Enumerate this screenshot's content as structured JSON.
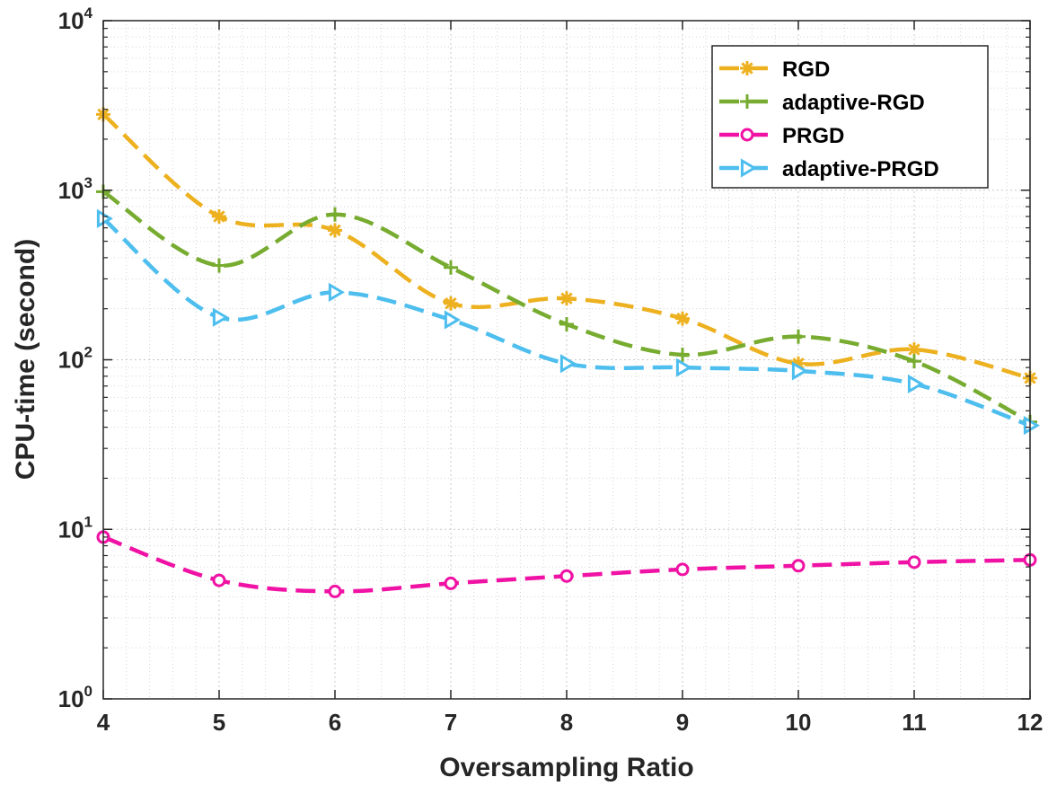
{
  "chart_data": {
    "type": "line",
    "title": "",
    "xlabel": "Oversampling Ratio",
    "ylabel": "CPU-time (second)",
    "x": [
      4,
      5,
      6,
      7,
      8,
      9,
      10,
      11,
      12
    ],
    "xlim": [
      4,
      12
    ],
    "ylim": [
      1,
      10000
    ],
    "yscale": "log",
    "grid": true,
    "minor_grid": true,
    "legend_position": "top-right",
    "x_ticks": [
      "4",
      "5",
      "6",
      "7",
      "8",
      "9",
      "10",
      "11",
      "12"
    ],
    "y_ticks": [
      {
        "value": 1,
        "base": "10",
        "exp": "0"
      },
      {
        "value": 10,
        "base": "10",
        "exp": "1"
      },
      {
        "value": 100,
        "base": "10",
        "exp": "2"
      },
      {
        "value": 1000,
        "base": "10",
        "exp": "3"
      },
      {
        "value": 10000,
        "base": "10",
        "exp": "4"
      }
    ],
    "series": [
      {
        "name": "RGD",
        "color": "#EDB120",
        "marker": "asterisk",
        "values": [
          2800,
          700,
          580,
          215,
          230,
          175,
          95,
          115,
          78
        ]
      },
      {
        "name": "adaptive-RGD",
        "color": "#77AC30",
        "marker": "plus",
        "values": [
          980,
          360,
          720,
          350,
          162,
          107,
          137,
          98,
          43
        ]
      },
      {
        "name": "PRGD",
        "color": "#F012A4",
        "marker": "circle",
        "values": [
          9.0,
          5.0,
          4.3,
          4.8,
          5.3,
          5.8,
          6.1,
          6.4,
          6.6
        ]
      },
      {
        "name": "adaptive-PRGD",
        "color": "#4DBEEE",
        "marker": "triangle-right",
        "values": [
          680,
          178,
          250,
          172,
          95,
          90,
          86,
          72,
          41
        ]
      }
    ]
  }
}
